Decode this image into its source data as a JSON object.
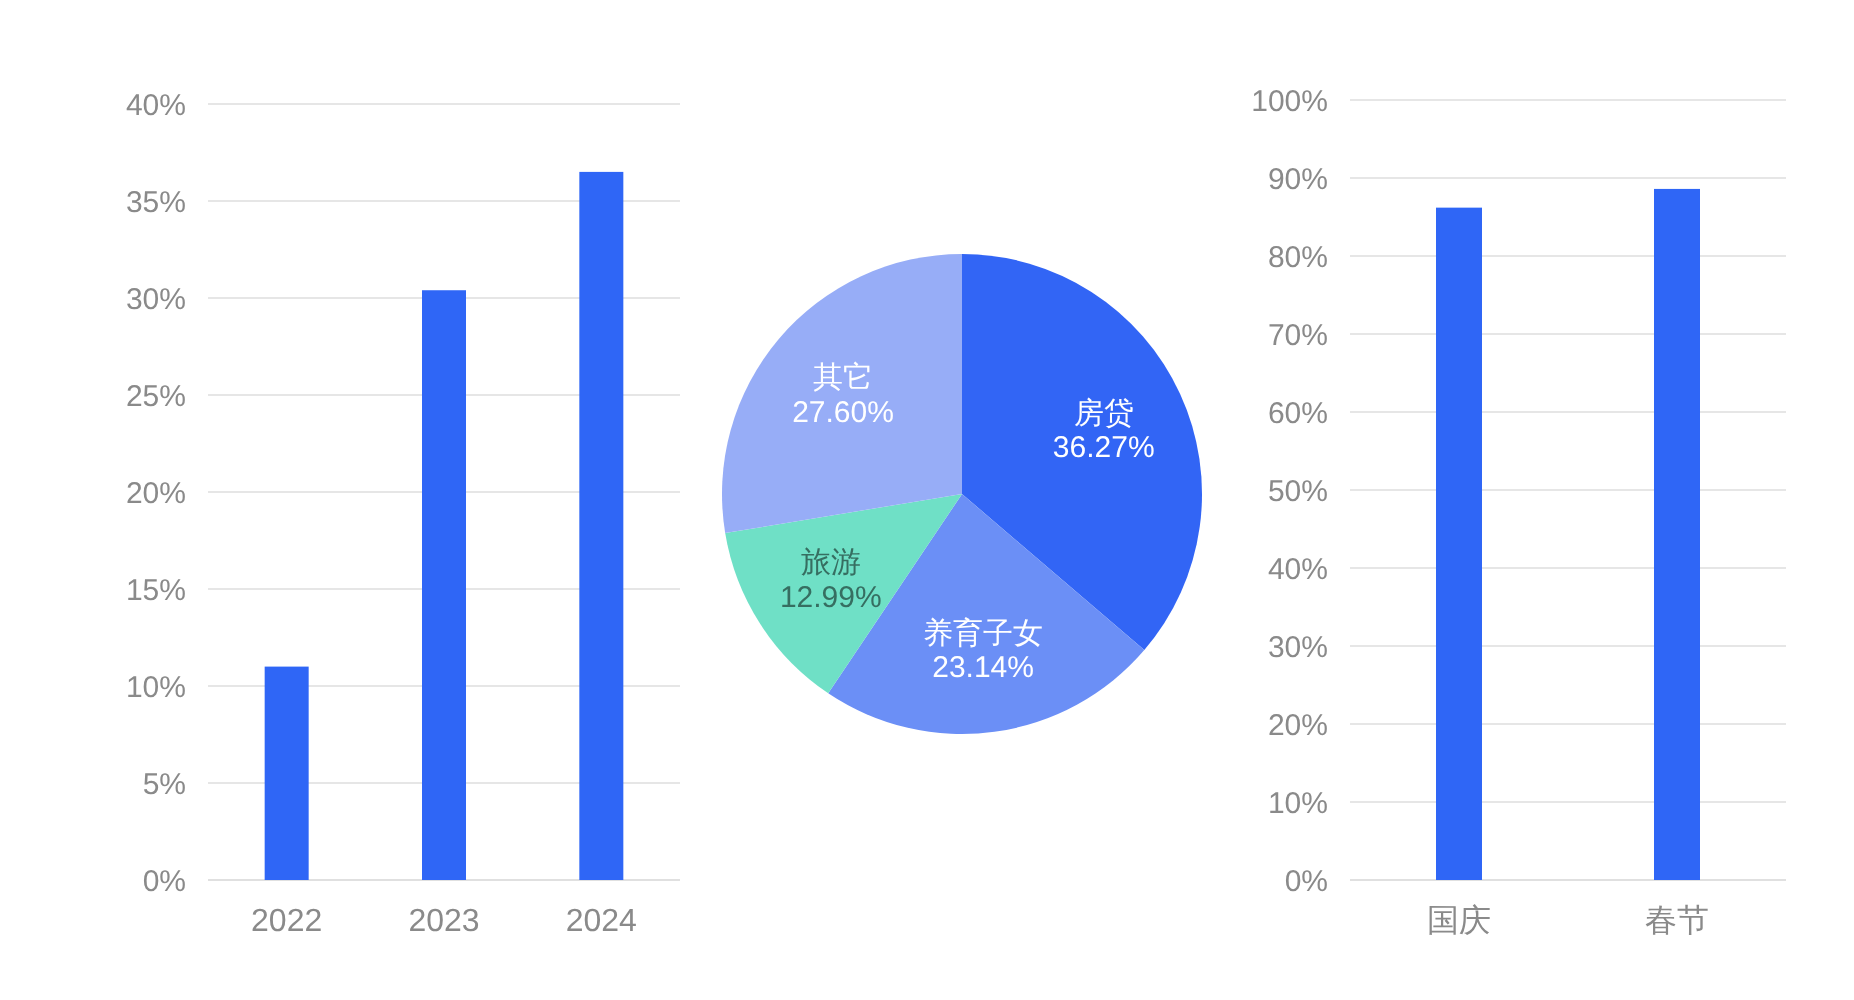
{
  "chart_data": [
    {
      "type": "bar",
      "categories": [
        "2022",
        "2023",
        "2024"
      ],
      "values": [
        11,
        30.4,
        36.5
      ],
      "color": "#2f66f6",
      "ylim": [
        0,
        40
      ],
      "yticks": [
        {
          "value": 0,
          "label": "0%"
        },
        {
          "value": 5,
          "label": "5%"
        },
        {
          "value": 10,
          "label": "10%"
        },
        {
          "value": 15,
          "label": "15%"
        },
        {
          "value": 20,
          "label": "20%"
        },
        {
          "value": 25,
          "label": "25%"
        },
        {
          "value": 30,
          "label": "30%"
        },
        {
          "value": 35,
          "label": "35%"
        },
        {
          "value": 40,
          "label": "40%"
        }
      ],
      "grid": "y"
    },
    {
      "type": "pie",
      "categories": [
        "房贷",
        "养育子女",
        "旅游",
        "其它"
      ],
      "values": [
        36.27,
        23.14,
        12.99,
        27.6
      ],
      "colors": [
        "#3265f5",
        "#6b8ff6",
        "#6fe0c6",
        "#97adf7"
      ],
      "value_labels": [
        "36.27%",
        "23.14%",
        "12.99%",
        "27.60%"
      ]
    },
    {
      "type": "bar",
      "categories": [
        "国庆",
        "春节"
      ],
      "values": [
        86.2,
        88.6
      ],
      "color": "#2f66f6",
      "ylim": [
        0,
        100
      ],
      "yticks": [
        {
          "value": 0,
          "label": "0%"
        },
        {
          "value": 10,
          "label": "10%"
        },
        {
          "value": 20,
          "label": "20%"
        },
        {
          "value": 30,
          "label": "30%"
        },
        {
          "value": 40,
          "label": "40%"
        },
        {
          "value": 50,
          "label": "50%"
        },
        {
          "value": 60,
          "label": "60%"
        },
        {
          "value": 70,
          "label": "70%"
        },
        {
          "value": 80,
          "label": "80%"
        },
        {
          "value": 90,
          "label": "90%"
        },
        {
          "value": 100,
          "label": "100%"
        }
      ],
      "grid": "y"
    }
  ]
}
